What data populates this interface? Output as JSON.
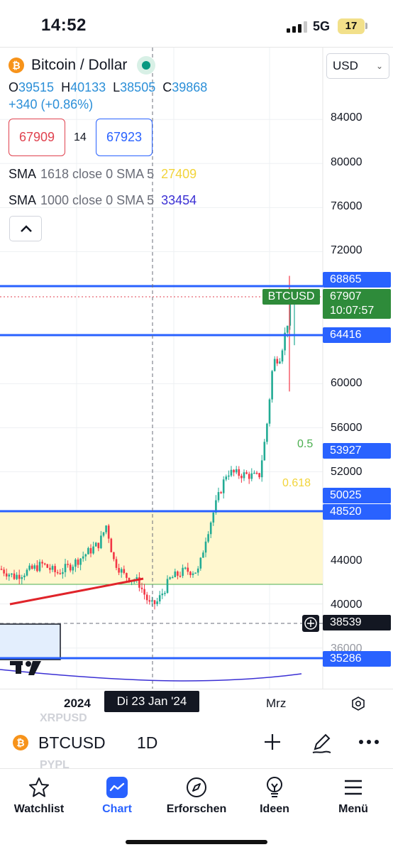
{
  "status_bar": {
    "time": "14:52",
    "network": "5G",
    "battery": "17"
  },
  "header": {
    "symbol_icon": "bitcoin-icon",
    "title": "Bitcoin / Dollar",
    "ohlc": {
      "o_label": "O",
      "o_value": "39515",
      "h_label": "H",
      "h_value": "40133",
      "l_label": "L",
      "l_value": "38505",
      "c_label": "C",
      "c_value": "39868"
    },
    "change": "+340 (+0.86%)",
    "sell_price": "67909",
    "spread": "14",
    "buy_price": "67923"
  },
  "indicators": [
    {
      "name": "SMA",
      "params": "1618 close 0 SMA 5",
      "value": "27409",
      "color": "#f2d43a"
    },
    {
      "name": "SMA",
      "params": "1000 close 0 SMA 5",
      "value": "33454",
      "color": "#3a2fd4"
    }
  ],
  "currency": {
    "selected": "USD"
  },
  "price_axis": {
    "ticks": [
      "84000",
      "80000",
      "76000",
      "72000",
      "60000",
      "56000",
      "52000",
      "44000",
      "40000",
      "36000"
    ],
    "level_tags": [
      "68865",
      "64416",
      "53927",
      "50025",
      "48520",
      "35286"
    ],
    "crosshair_price": "38539",
    "current_symbol": "BTCUSD",
    "current_price": "67907",
    "countdown": "10:07:57",
    "fib_levels": [
      {
        "label": "0.5",
        "color": "#4caf50"
      },
      {
        "label": "0.618",
        "color": "#f2d43a"
      }
    ]
  },
  "time_axis": {
    "labels": [
      "2024",
      "Mrz"
    ],
    "crosshair_date": "Di 23 Jan '24"
  },
  "ghost_symbols": [
    "XRPUSD",
    "PYPL"
  ],
  "chart_data": {
    "type": "candlestick",
    "symbol": "BTCUSD",
    "interval": "1D",
    "price_range": [
      34000,
      88000
    ],
    "horizontal_levels": [
      68865,
      64416,
      48520,
      35286
    ],
    "highlight_zone": [
      42000,
      48520
    ],
    "fibonacci": {
      "0.5": 53927,
      "0.618": 50025
    },
    "current_price": 67907,
    "crosshair": {
      "date": "Di 23 Jan '24",
      "price": 38539
    }
  },
  "symbol_bar": {
    "symbol": "BTCUSD",
    "interval": "1D"
  },
  "tabs": [
    {
      "label": "Watchlist",
      "icon": "star-icon"
    },
    {
      "label": "Chart",
      "icon": "chart-icon"
    },
    {
      "label": "Erforschen",
      "icon": "compass-icon"
    },
    {
      "label": "Ideen",
      "icon": "lightbulb-icon"
    },
    {
      "label": "Menü",
      "icon": "hamburger-icon"
    }
  ]
}
